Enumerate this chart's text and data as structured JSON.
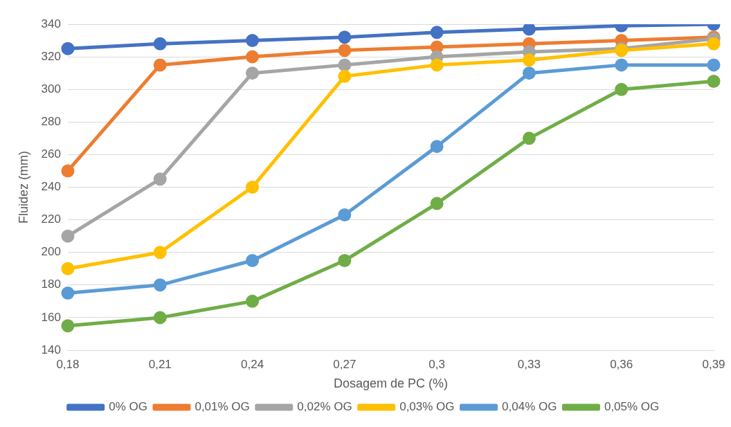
{
  "chart_data": {
    "type": "line",
    "xlabel": "Dosagem de PC (%)",
    "ylabel": "Fluidez (mm)",
    "categories": [
      "0,18",
      "0,21",
      "0,24",
      "0,27",
      "0,3",
      "0,33",
      "0,36",
      "0,39"
    ],
    "series": [
      {
        "name": "0% OG",
        "color": "#4472c4",
        "values": [
          325,
          328,
          330,
          332,
          335,
          337,
          339,
          340
        ]
      },
      {
        "name": "0,01% OG",
        "color": "#ed7d31",
        "values": [
          250,
          315,
          320,
          324,
          326,
          328,
          330,
          332
        ]
      },
      {
        "name": "0,02% OG",
        "color": "#a5a5a5",
        "values": [
          210,
          245,
          310,
          315,
          320,
          323,
          325,
          331
        ]
      },
      {
        "name": "0,03% OG",
        "color": "#ffc000",
        "values": [
          190,
          200,
          240,
          308,
          315,
          318,
          324,
          328
        ]
      },
      {
        "name": "0,04% OG",
        "color": "#5b9bd5",
        "values": [
          175,
          180,
          195,
          223,
          265,
          310,
          315,
          315
        ]
      },
      {
        "name": "0,05% OG",
        "color": "#70ad47",
        "values": [
          155,
          160,
          170,
          195,
          230,
          270,
          300,
          305
        ]
      }
    ],
    "ylim": [
      140,
      340
    ],
    "yticks": [
      140,
      160,
      180,
      200,
      220,
      240,
      260,
      280,
      300,
      320,
      340
    ],
    "grid": "y",
    "legend": "bottom",
    "marker": "circle",
    "line_style": "solid"
  }
}
